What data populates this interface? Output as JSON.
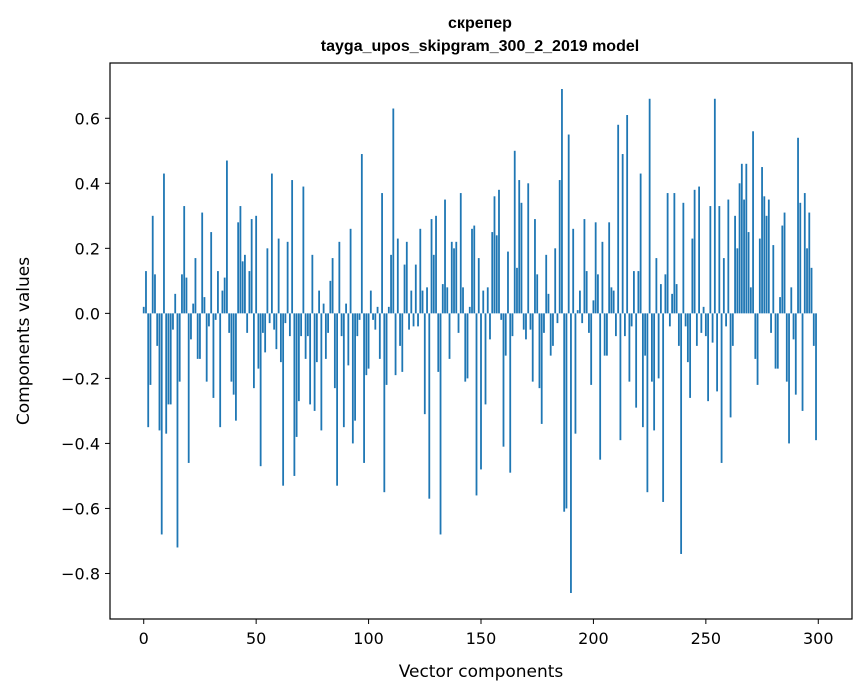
{
  "chart_data": {
    "type": "bar",
    "title_line1": "скрепер",
    "title_line2": "tayga_upos_skipgram_300_2_2019 model",
    "xlabel": "Vector components",
    "ylabel": "Components values",
    "xlim": [
      -15,
      315
    ],
    "ylim": [
      -0.94,
      0.77
    ],
    "xticks": [
      0,
      50,
      100,
      150,
      200,
      250,
      300
    ],
    "xtick_labels": [
      "0",
      "50",
      "100",
      "150",
      "200",
      "250",
      "300"
    ],
    "yticks": [
      -0.8,
      -0.6,
      -0.4,
      -0.2,
      0.0,
      0.2,
      0.4,
      0.6
    ],
    "ytick_labels": [
      "−0.8",
      "−0.6",
      "−0.4",
      "−0.2",
      "0.0",
      "0.2",
      "0.4",
      "0.6"
    ],
    "bar_color": "#1f77b4",
    "values": [
      0.02,
      0.13,
      -0.35,
      -0.22,
      0.3,
      0.12,
      -0.1,
      -0.36,
      -0.68,
      0.43,
      -0.37,
      -0.28,
      -0.28,
      -0.05,
      0.06,
      -0.72,
      -0.21,
      0.12,
      0.33,
      0.11,
      -0.46,
      -0.08,
      0.03,
      0.17,
      -0.14,
      -0.14,
      0.31,
      0.05,
      -0.21,
      -0.04,
      0.25,
      -0.26,
      -0.02,
      0.13,
      -0.35,
      0.07,
      0.11,
      0.47,
      -0.06,
      -0.21,
      -0.25,
      -0.33,
      0.28,
      0.33,
      0.16,
      0.18,
      -0.06,
      0.13,
      0.29,
      -0.23,
      0.3,
      -0.17,
      -0.47,
      -0.06,
      -0.12,
      0.2,
      -0.03,
      0.43,
      -0.05,
      -0.11,
      0.23,
      -0.15,
      -0.53,
      -0.03,
      0.22,
      -0.07,
      0.41,
      -0.5,
      -0.38,
      -0.27,
      -0.07,
      0.39,
      -0.14,
      -0.07,
      -0.28,
      0.18,
      -0.3,
      -0.15,
      0.07,
      -0.36,
      0.03,
      -0.14,
      -0.06,
      0.1,
      0.17,
      -0.23,
      -0.53,
      0.22,
      -0.07,
      -0.35,
      0.03,
      -0.16,
      0.26,
      -0.4,
      -0.33,
      -0.07,
      -0.02,
      0.49,
      -0.46,
      -0.19,
      -0.17,
      0.07,
      -0.02,
      -0.05,
      0.02,
      -0.14,
      0.37,
      -0.55,
      -0.22,
      0.02,
      0.18,
      0.63,
      -0.19,
      0.23,
      -0.1,
      -0.18,
      0.15,
      0.22,
      -0.05,
      0.07,
      -0.04,
      0.15,
      -0.04,
      0.26,
      0.07,
      -0.31,
      0.08,
      -0.57,
      0.29,
      0.18,
      0.3,
      -0.18,
      -0.68,
      0.09,
      0.35,
      0.08,
      -0.14,
      0.22,
      0.2,
      0.22,
      -0.06,
      0.37,
      0.08,
      -0.21,
      -0.2,
      0.02,
      0.26,
      0.27,
      -0.56,
      0.17,
      -0.48,
      0.07,
      -0.28,
      0.08,
      -0.08,
      0.25,
      0.36,
      0.24,
      0.38,
      -0.02,
      -0.41,
      -0.13,
      0.19,
      -0.49,
      -0.07,
      0.5,
      0.14,
      0.41,
      0.34,
      -0.05,
      -0.08,
      0.4,
      -0.05,
      -0.21,
      0.29,
      0.12,
      -0.23,
      -0.34,
      -0.06,
      0.18,
      0.06,
      -0.13,
      -0.1,
      0.2,
      -0.03,
      0.41,
      0.69,
      -0.61,
      -0.6,
      0.55,
      -0.86,
      0.26,
      -0.37,
      0.01,
      0.07,
      -0.03,
      0.29,
      0.13,
      -0.06,
      -0.22,
      0.04,
      0.28,
      0.12,
      -0.45,
      0.22,
      -0.13,
      -0.13,
      0.28,
      0.08,
      0.07,
      -0.07,
      0.58,
      -0.39,
      0.49,
      -0.07,
      0.61,
      -0.21,
      -0.04,
      0.13,
      -0.29,
      0.13,
      0.43,
      -0.35,
      -0.13,
      -0.55,
      0.66,
      -0.21,
      -0.36,
      0.17,
      -0.2,
      0.09,
      -0.58,
      0.12,
      0.37,
      -0.04,
      0.06,
      0.37,
      0.09,
      -0.1,
      -0.74,
      0.34,
      -0.04,
      -0.15,
      -0.26,
      0.23,
      0.38,
      -0.1,
      0.39,
      -0.06,
      0.02,
      -0.07,
      -0.27,
      0.33,
      -0.09,
      0.66,
      -0.24,
      0.33,
      -0.46,
      0.17,
      -0.04,
      0.35,
      -0.32,
      -0.1,
      0.3,
      0.2,
      0.4,
      0.46,
      0.35,
      0.46,
      0.25,
      0.08,
      0.56,
      -0.14,
      -0.22,
      0.23,
      0.45,
      0.36,
      0.3,
      0.35,
      -0.06,
      0.21,
      -0.17,
      -0.17,
      0.05,
      0.27,
      0.31,
      -0.21,
      -0.4,
      0.08,
      -0.08,
      -0.25,
      0.54,
      0.34,
      -0.3,
      0.37,
      0.2,
      0.31,
      0.14,
      -0.1,
      -0.39
    ]
  }
}
